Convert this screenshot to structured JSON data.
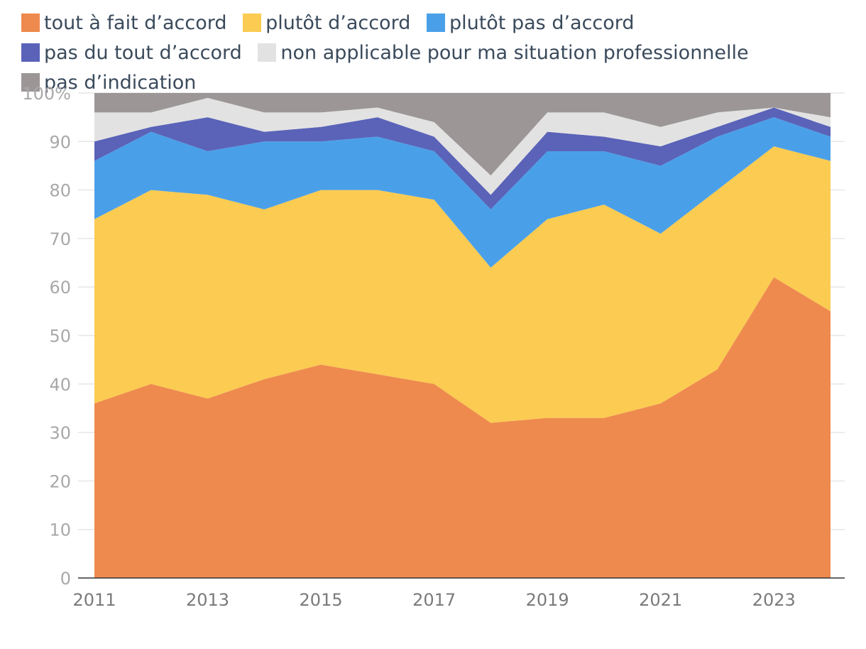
{
  "chart_data": {
    "type": "area",
    "stacked": true,
    "x": [
      2011,
      2012,
      2013,
      2014,
      2015,
      2016,
      2017,
      2018,
      2019,
      2020,
      2021,
      2022,
      2023,
      2024
    ],
    "series": [
      {
        "name": "tout à fait d’accord",
        "color": "#ee8a4e",
        "values": [
          36,
          40,
          37,
          41,
          44,
          42,
          40,
          32,
          33,
          33,
          36,
          43,
          62,
          55
        ]
      },
      {
        "name": "plutôt d’accord",
        "color": "#fbcb52",
        "values": [
          38,
          40,
          42,
          35,
          36,
          38,
          38,
          32,
          41,
          44,
          35,
          37,
          27,
          31
        ]
      },
      {
        "name": "plutôt pas d’accord",
        "color": "#4aa0e8",
        "values": [
          12,
          12,
          9,
          14,
          10,
          11,
          10,
          12,
          14,
          11,
          14,
          11,
          6,
          5
        ]
      },
      {
        "name": "pas du tout d’accord",
        "color": "#5a63b8",
        "values": [
          4,
          1,
          7,
          2,
          3,
          4,
          3,
          3,
          4,
          3,
          4,
          2,
          2,
          2
        ]
      },
      {
        "name": "non applicable pour ma situation professionnelle",
        "color": "#e2e2e2",
        "values": [
          6,
          3,
          4,
          4,
          3,
          2,
          3,
          4,
          4,
          5,
          4,
          3,
          0,
          2
        ]
      },
      {
        "name": "pas d’indication",
        "color": "#9c9696",
        "values": [
          4,
          4,
          1,
          4,
          4,
          3,
          6,
          17,
          4,
          4,
          7,
          4,
          3,
          5
        ]
      }
    ],
    "ylim": [
      0,
      100
    ],
    "yticks": [
      "0",
      "10",
      "20",
      "30",
      "40",
      "50",
      "60",
      "70",
      "80",
      "90",
      "100%"
    ],
    "xticks": [
      "2011",
      "2013",
      "2015",
      "2017",
      "2019",
      "2021",
      "2023"
    ],
    "title": "",
    "xlabel": "",
    "ylabel": "",
    "legend_position": "top"
  }
}
